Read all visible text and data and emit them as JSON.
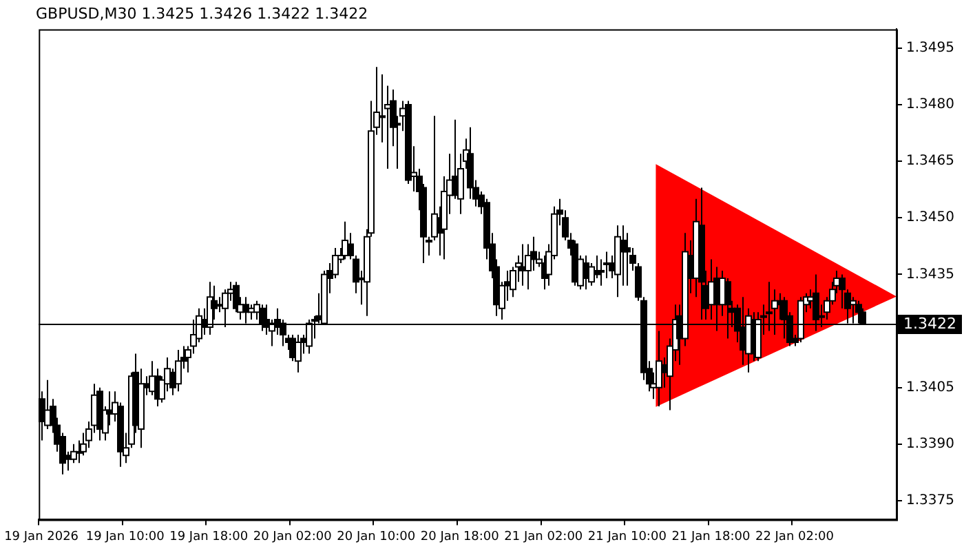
{
  "chart_data": {
    "type": "candlestick",
    "title": "GBPUSD,M30 1.3425 1.3426 1.3422 1.3422",
    "color": "#000000",
    "categories": [
      "19 Jan 2026",
      null,
      null,
      null,
      null,
      null,
      null,
      null,
      null,
      null,
      null,
      null,
      null,
      null,
      null,
      null,
      "19 Jan 10:00",
      null,
      null,
      null,
      null,
      null,
      null,
      null,
      null,
      null,
      null,
      null,
      null,
      null,
      null,
      null,
      "19 Jan 18:00",
      null,
      null,
      null,
      null,
      null,
      null,
      null,
      null,
      null,
      null,
      null,
      null,
      null,
      null,
      null,
      "20 Jan 02:00",
      null,
      null,
      null,
      null,
      null,
      null,
      null,
      null,
      null,
      null,
      null,
      null,
      null,
      null,
      null,
      "20 Jan 10:00",
      null,
      null,
      null,
      null,
      null,
      null,
      null,
      null,
      null,
      null,
      null,
      null,
      null,
      null,
      null,
      "20 Jan 18:00",
      null,
      null,
      null,
      null,
      null,
      null,
      null,
      null,
      null,
      null,
      null,
      null,
      null,
      null,
      null,
      "21 Jan 02:00",
      null,
      null,
      null,
      null,
      null,
      null,
      null,
      null,
      null,
      null,
      null,
      null,
      null,
      null,
      null,
      "21 Jan 10:00",
      null,
      null,
      null,
      null,
      null,
      null,
      null,
      null,
      null,
      null,
      null,
      null,
      null,
      null,
      null,
      "21 Jan 18:00",
      null,
      null,
      null,
      null,
      null,
      null,
      null,
      null,
      null,
      null,
      null,
      null,
      null,
      null,
      null,
      "22 Jan 02:00",
      null,
      null,
      null,
      null,
      null,
      null,
      null,
      null,
      null,
      null,
      null,
      null,
      null,
      null,
      null,
      null,
      null,
      null,
      null
    ],
    "ohlc": [
      [
        1.3402,
        1.3404,
        1.3391,
        1.3396
      ],
      [
        1.3395,
        1.3407,
        1.3394,
        1.3399
      ],
      [
        1.34,
        1.3402,
        1.3393,
        1.3395
      ],
      [
        1.3395,
        1.3397,
        1.3388,
        1.339
      ],
      [
        1.3392,
        1.3393,
        1.3382,
        1.3385
      ],
      [
        1.3387,
        1.3388,
        1.3383,
        1.3386
      ],
      [
        1.3386,
        1.339,
        1.3385,
        1.3388
      ],
      [
        1.3388,
        1.3391,
        1.3385,
        1.3388
      ],
      [
        1.3388,
        1.3393,
        1.3387,
        1.339
      ],
      [
        1.3391,
        1.3396,
        1.3389,
        1.3394
      ],
      [
        1.3395,
        1.3406,
        1.3393,
        1.3403
      ],
      [
        1.3404,
        1.3405,
        1.3391,
        1.3394
      ],
      [
        1.3393,
        1.34,
        1.3391,
        1.3399
      ],
      [
        1.3399,
        1.3404,
        1.3395,
        1.3398
      ],
      [
        1.3398,
        1.3404,
        1.3396,
        1.3401
      ],
      [
        1.34,
        1.3401,
        1.3384,
        1.3388
      ],
      [
        1.3387,
        1.3393,
        1.3385,
        1.3389
      ],
      [
        1.339,
        1.3409,
        1.3389,
        1.3408
      ],
      [
        1.3409,
        1.3414,
        1.3393,
        1.3395
      ],
      [
        1.3394,
        1.341,
        1.3389,
        1.3406
      ],
      [
        1.3406,
        1.3408,
        1.3403,
        1.3405
      ],
      [
        1.3404,
        1.3412,
        1.3403,
        1.3408
      ],
      [
        1.3408,
        1.341,
        1.34,
        1.3402
      ],
      [
        1.3402,
        1.3408,
        1.3401,
        1.3407
      ],
      [
        1.3406,
        1.3413,
        1.3404,
        1.341
      ],
      [
        1.3409,
        1.341,
        1.3403,
        1.3405
      ],
      [
        1.3406,
        1.3415,
        1.3404,
        1.3412
      ],
      [
        1.3413,
        1.3416,
        1.341,
        1.3412
      ],
      [
        1.3413,
        1.3416,
        1.3409,
        1.3415
      ],
      [
        1.3416,
        1.3423,
        1.3414,
        1.3419
      ],
      [
        1.3418,
        1.3426,
        1.3417,
        1.3424
      ],
      [
        1.3423,
        1.3426,
        1.3419,
        1.3421
      ],
      [
        1.3421,
        1.3433,
        1.3419,
        1.3429
      ],
      [
        1.3428,
        1.3432,
        1.3423,
        1.3426
      ],
      [
        1.3427,
        1.3429,
        1.3425,
        1.3427
      ],
      [
        1.3426,
        1.3431,
        1.3421,
        1.343
      ],
      [
        1.343,
        1.3433,
        1.3428,
        1.3431
      ],
      [
        1.3432,
        1.3433,
        1.3425,
        1.3426
      ],
      [
        1.3425,
        1.3429,
        1.3423,
        1.3427
      ],
      [
        1.3427,
        1.3429,
        1.3422,
        1.3425
      ],
      [
        1.3425,
        1.3427,
        1.3423,
        1.3426
      ],
      [
        1.3425,
        1.3428,
        1.3423,
        1.3427
      ],
      [
        1.3426,
        1.3427,
        1.342,
        1.3422
      ],
      [
        1.3423,
        1.3427,
        1.3419,
        1.3421
      ],
      [
        1.342,
        1.3423,
        1.3416,
        1.3422
      ],
      [
        1.3423,
        1.3426,
        1.3419,
        1.3421
      ],
      [
        1.3422,
        1.3423,
        1.3416,
        1.3419
      ],
      [
        1.3418,
        1.3419,
        1.3415,
        1.3417
      ],
      [
        1.3418,
        1.3419,
        1.3412,
        1.3413
      ],
      [
        1.3412,
        1.3419,
        1.3409,
        1.3417
      ],
      [
        1.3418,
        1.3419,
        1.3414,
        1.3417
      ],
      [
        1.3416,
        1.3423,
        1.3414,
        1.3422
      ],
      [
        1.3423,
        1.3424,
        1.3418,
        1.3423
      ],
      [
        1.3424,
        1.343,
        1.3422,
        1.3423
      ],
      [
        1.3422,
        1.3436,
        1.3422,
        1.3435
      ],
      [
        1.3436,
        1.3438,
        1.343,
        1.3434
      ],
      [
        1.3435,
        1.3442,
        1.3434,
        1.344
      ],
      [
        1.3439,
        1.3442,
        1.3438,
        1.344
      ],
      [
        1.344,
        1.3449,
        1.3439,
        1.3444
      ],
      [
        1.3443,
        1.3446,
        1.3439,
        1.344
      ],
      [
        1.3439,
        1.344,
        1.343,
        1.3433
      ],
      [
        1.3434,
        1.3436,
        1.3427,
        1.3434
      ],
      [
        1.3433,
        1.3447,
        1.3424,
        1.3445
      ],
      [
        1.3446,
        1.3481,
        1.3445,
        1.3473
      ],
      [
        1.3474,
        1.349,
        1.3472,
        1.3478
      ],
      [
        1.3477,
        1.3488,
        1.347,
        1.3477
      ],
      [
        1.3479,
        1.3485,
        1.3463,
        1.348
      ],
      [
        1.3481,
        1.3484,
        1.3469,
        1.3474
      ],
      [
        1.3475,
        1.3477,
        1.3463,
        1.3475
      ],
      [
        1.3477,
        1.3481,
        1.3473,
        1.3479
      ],
      [
        1.348,
        1.3481,
        1.3459,
        1.346
      ],
      [
        1.3461,
        1.3469,
        1.3457,
        1.3462
      ],
      [
        1.3461,
        1.3463,
        1.3452,
        1.3457
      ],
      [
        1.3458,
        1.3459,
        1.3438,
        1.3445
      ],
      [
        1.3444,
        1.3445,
        1.344,
        1.3444
      ],
      [
        1.3445,
        1.3477,
        1.3444,
        1.3451
      ],
      [
        1.345,
        1.3453,
        1.344,
        1.3446
      ],
      [
        1.3447,
        1.3461,
        1.3439,
        1.3457
      ],
      [
        1.3456,
        1.3467,
        1.3451,
        1.346
      ],
      [
        1.3461,
        1.3476,
        1.3455,
        1.3456
      ],
      [
        1.3455,
        1.3467,
        1.3451,
        1.3463
      ],
      [
        1.3465,
        1.3471,
        1.3463,
        1.3468
      ],
      [
        1.3467,
        1.3474,
        1.3455,
        1.3458
      ],
      [
        1.3458,
        1.346,
        1.3453,
        1.3455
      ],
      [
        1.3456,
        1.3457,
        1.3451,
        1.3453
      ],
      [
        1.3454,
        1.3455,
        1.3439,
        1.3442
      ],
      [
        1.3443,
        1.3446,
        1.3434,
        1.3436
      ],
      [
        1.3437,
        1.3439,
        1.3424,
        1.3427
      ],
      [
        1.3426,
        1.3433,
        1.3423,
        1.3432
      ],
      [
        1.3433,
        1.3436,
        1.3428,
        1.3432
      ],
      [
        1.3431,
        1.3437,
        1.3429,
        1.3436
      ],
      [
        1.3437,
        1.344,
        1.3433,
        1.3438
      ],
      [
        1.3437,
        1.3443,
        1.3432,
        1.3436
      ],
      [
        1.3436,
        1.3443,
        1.3431,
        1.344
      ],
      [
        1.3441,
        1.3445,
        1.3436,
        1.3439
      ],
      [
        1.3438,
        1.3441,
        1.3437,
        1.3439
      ],
      [
        1.3438,
        1.344,
        1.3431,
        1.3434
      ],
      [
        1.3435,
        1.3443,
        1.3432,
        1.3441
      ],
      [
        1.344,
        1.3453,
        1.3439,
        1.3451
      ],
      [
        1.3452,
        1.3455,
        1.3448,
        1.3451
      ],
      [
        1.345,
        1.3452,
        1.3444,
        1.3445
      ],
      [
        1.3444,
        1.3446,
        1.344,
        1.3442
      ],
      [
        1.3443,
        1.3444,
        1.3432,
        1.3433
      ],
      [
        1.3432,
        1.344,
        1.3431,
        1.3439
      ],
      [
        1.3438,
        1.344,
        1.3431,
        1.3434
      ],
      [
        1.3433,
        1.3438,
        1.3432,
        1.3437
      ],
      [
        1.3436,
        1.344,
        1.3434,
        1.3435
      ],
      [
        1.3436,
        1.3439,
        1.3432,
        1.3436
      ],
      [
        1.3438,
        1.3441,
        1.3434,
        1.3438
      ],
      [
        1.3438,
        1.344,
        1.3434,
        1.3436
      ],
      [
        1.3435,
        1.3448,
        1.3429,
        1.3445
      ],
      [
        1.3444,
        1.3448,
        1.3432,
        1.3441
      ],
      [
        1.3442,
        1.3446,
        1.3432,
        1.3441
      ],
      [
        1.344,
        1.3442,
        1.3436,
        1.3438
      ],
      [
        1.3437,
        1.3438,
        1.3428,
        1.3429
      ],
      [
        1.3428,
        1.3429,
        1.3407,
        1.3409
      ],
      [
        1.341,
        1.3412,
        1.3404,
        1.3406
      ],
      [
        1.3405,
        1.3409,
        1.3402,
        1.3406
      ],
      [
        1.3405,
        1.342,
        1.34,
        1.3412
      ],
      [
        1.3411,
        1.3413,
        1.3405,
        1.3409
      ],
      [
        1.3408,
        1.3418,
        1.3399,
        1.3416
      ],
      [
        1.3415,
        1.3427,
        1.3412,
        1.3423
      ],
      [
        1.3424,
        1.3427,
        1.3411,
        1.3418
      ],
      [
        1.3418,
        1.3446,
        1.3416,
        1.3441
      ],
      [
        1.344,
        1.3444,
        1.343,
        1.3434
      ],
      [
        1.3434,
        1.3455,
        1.3429,
        1.3449
      ],
      [
        1.3448,
        1.3458,
        1.3423,
        1.3433
      ],
      [
        1.3432,
        1.3436,
        1.3423,
        1.3426
      ],
      [
        1.3427,
        1.3439,
        1.3423,
        1.3433
      ],
      [
        1.3434,
        1.3437,
        1.342,
        1.3427
      ],
      [
        1.3427,
        1.3436,
        1.3424,
        1.3434
      ],
      [
        1.3433,
        1.3434,
        1.3418,
        1.3427
      ],
      [
        1.3426,
        1.3428,
        1.3421,
        1.3425
      ],
      [
        1.3426,
        1.3427,
        1.3417,
        1.342
      ],
      [
        1.3421,
        1.3429,
        1.3411,
        1.3415
      ],
      [
        1.3414,
        1.3426,
        1.3409,
        1.3424
      ],
      [
        1.3423,
        1.3425,
        1.3412,
        1.3414
      ],
      [
        1.3413,
        1.3425,
        1.3412,
        1.3423
      ],
      [
        1.3424,
        1.3427,
        1.3419,
        1.3424
      ],
      [
        1.3425,
        1.3433,
        1.342,
        1.3425
      ],
      [
        1.3426,
        1.3431,
        1.3419,
        1.3428
      ],
      [
        1.3428,
        1.343,
        1.3423,
        1.3427
      ],
      [
        1.3428,
        1.3429,
        1.3418,
        1.3423
      ],
      [
        1.3424,
        1.3425,
        1.3416,
        1.3417
      ],
      [
        1.3418,
        1.3419,
        1.3416,
        1.3417
      ],
      [
        1.3418,
        1.3429,
        1.3417,
        1.3428
      ],
      [
        1.3427,
        1.343,
        1.3425,
        1.3429
      ],
      [
        1.3428,
        1.3431,
        1.3426,
        1.3429
      ],
      [
        1.343,
        1.3435,
        1.342,
        1.3423
      ],
      [
        1.3424,
        1.3427,
        1.3421,
        1.3424
      ],
      [
        1.3425,
        1.3429,
        1.3423,
        1.3428
      ],
      [
        1.3428,
        1.3433,
        1.3427,
        1.3431
      ],
      [
        1.3432,
        1.3436,
        1.343,
        1.3434
      ],
      [
        1.3434,
        1.3435,
        1.3426,
        1.3431
      ],
      [
        1.343,
        1.3431,
        1.3422,
        1.3426
      ],
      [
        1.3427,
        1.3429,
        1.3422,
        1.3428
      ],
      [
        1.3427,
        1.3428,
        1.3422,
        1.3425
      ],
      [
        1.3425,
        1.3426,
        1.3422,
        1.3422
      ],
      null,
      null,
      null,
      null,
      null,
      null
    ],
    "ylim": [
      1.337,
      1.35
    ],
    "yticks": [
      1.3375,
      {
        "value": 1.339,
        "label": "1.3390"
      },
      1.3405,
      1.3435,
      {
        "value": 1.345,
        "label": "1.3450"
      },
      1.3465,
      {
        "value": 1.348,
        "label": "1.3480"
      },
      1.3495
    ],
    "ref_lines": [
      {
        "axis": "y",
        "value": 1.3422,
        "label": "1.3422",
        "color": "#000000"
      }
    ],
    "grid": false,
    "legend": false
  }
}
